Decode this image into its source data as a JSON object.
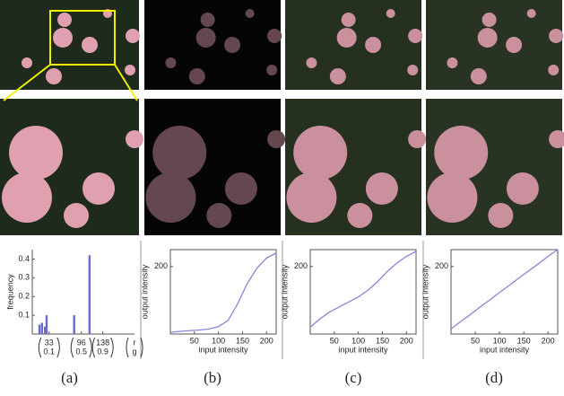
{
  "chart_data": [
    {
      "type": "bar",
      "label": "(a)",
      "ylabel": "frequency",
      "xlabel_top": "r",
      "xlabel_bottom": "g",
      "x": [
        14,
        19,
        25,
        28,
        82,
        112
      ],
      "values": [
        0.05,
        0.06,
        0.04,
        0.1,
        0.1,
        0.42
      ],
      "color": "#6a6ad0",
      "xlim": [
        0,
        200
      ],
      "ylim": [
        0,
        0.45
      ],
      "xticks": [
        {
          "value": 33,
          "label": "33",
          "sublabel": "0.1"
        },
        {
          "value": 96,
          "label": "96",
          "sublabel": "0.5"
        },
        {
          "value": 138,
          "label": "138",
          "sublabel": "0.9"
        }
      ],
      "yticks": [
        0.1,
        0.2,
        0.3,
        0.4
      ]
    },
    {
      "type": "line",
      "label": "(b)",
      "xlabel": "input intensity",
      "ylabel": "output intensity",
      "x": [
        0,
        20,
        40,
        60,
        80,
        100,
        120,
        140,
        160,
        180,
        200,
        220
      ],
      "values": [
        5,
        8,
        10,
        12,
        15,
        22,
        40,
        90,
        150,
        195,
        225,
        240
      ],
      "color": "#8585dd",
      "xlim": [
        0,
        220
      ],
      "ylim": [
        0,
        250
      ],
      "xticks": [
        50,
        100,
        150,
        200
      ],
      "yticks": [
        200
      ]
    },
    {
      "type": "line",
      "label": "(c)",
      "xlabel": "input intensity",
      "ylabel": "output intensity",
      "x": [
        0,
        20,
        40,
        60,
        80,
        100,
        120,
        140,
        160,
        180,
        200,
        220
      ],
      "values": [
        20,
        45,
        65,
        80,
        95,
        110,
        130,
        155,
        185,
        210,
        230,
        245
      ],
      "color": "#8585dd",
      "xlim": [
        0,
        220
      ],
      "ylim": [
        0,
        250
      ],
      "xticks": [
        50,
        100,
        150,
        200
      ],
      "yticks": [
        200
      ]
    },
    {
      "type": "line",
      "label": "(d)",
      "xlabel": "input intensity",
      "ylabel": "output intensity",
      "x": [
        0,
        20,
        40,
        60,
        80,
        100,
        120,
        140,
        160,
        180,
        200,
        220
      ],
      "values": [
        15,
        37,
        58,
        80,
        101,
        123,
        144,
        166,
        187,
        208,
        230,
        250
      ],
      "color": "#8585dd",
      "xlim": [
        0,
        220
      ],
      "ylim": [
        0,
        250
      ],
      "xticks": [
        50,
        100,
        150,
        200
      ],
      "yticks": [
        200
      ]
    }
  ]
}
